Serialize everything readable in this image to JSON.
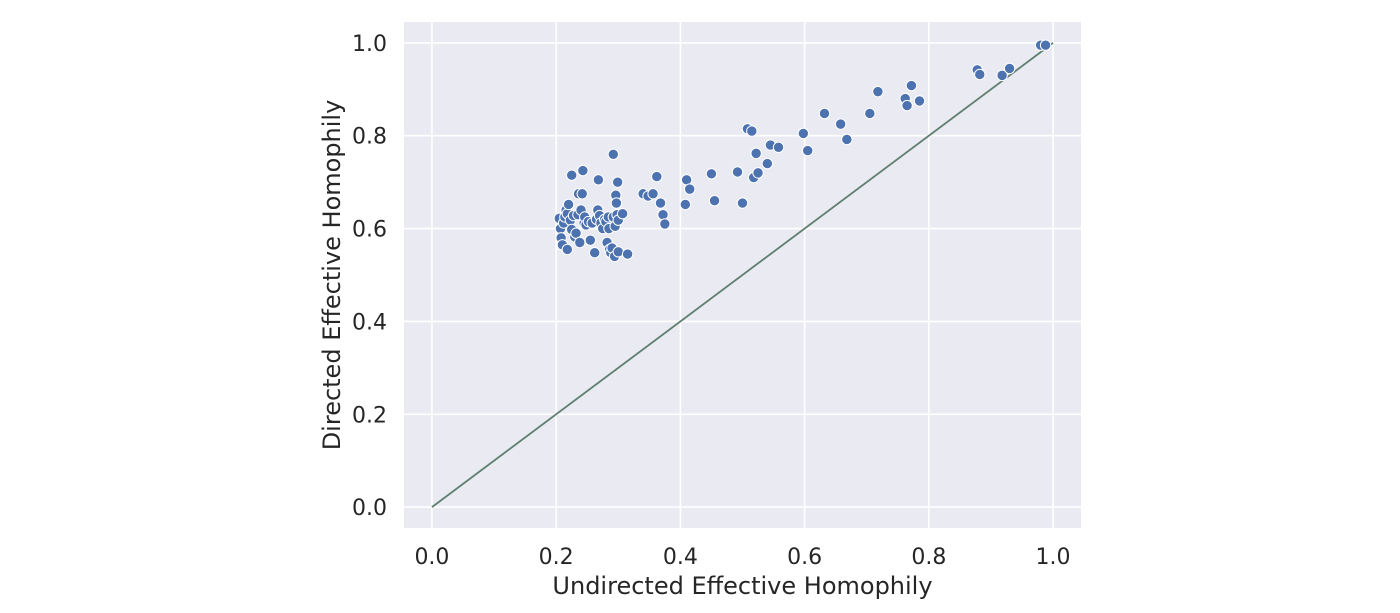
{
  "chart_data": {
    "type": "scatter",
    "title": "",
    "xlabel": "Undirected Effective Homophily",
    "ylabel": "Directed Effective Homophily",
    "xlim": [
      -0.045,
      1.045
    ],
    "ylim": [
      -0.045,
      1.045
    ],
    "xticks": [
      "0.0",
      "0.2",
      "0.4",
      "0.6",
      "0.8",
      "1.0"
    ],
    "yticks": [
      "0.0",
      "0.2",
      "0.4",
      "0.6",
      "0.8",
      "1.0"
    ],
    "grid": true,
    "colors": {
      "background": "#eaeaf2",
      "grid": "#ffffff",
      "point": "#4c72b0",
      "point_edge": "#ffffff",
      "reference_line": "#5f7f6f"
    },
    "reference_line": {
      "x": [
        0,
        1
      ],
      "y": [
        0,
        1
      ]
    },
    "points": [
      [
        0.205,
        0.622
      ],
      [
        0.207,
        0.6
      ],
      [
        0.208,
        0.58
      ],
      [
        0.21,
        0.565
      ],
      [
        0.212,
        0.612
      ],
      [
        0.214,
        0.625
      ],
      [
        0.216,
        0.64
      ],
      [
        0.218,
        0.632
      ],
      [
        0.22,
        0.652
      ],
      [
        0.218,
        0.555
      ],
      [
        0.223,
        0.618
      ],
      [
        0.225,
        0.598
      ],
      [
        0.225,
        0.715
      ],
      [
        0.228,
        0.628
      ],
      [
        0.23,
        0.582
      ],
      [
        0.232,
        0.59
      ],
      [
        0.235,
        0.63
      ],
      [
        0.236,
        0.675
      ],
      [
        0.238,
        0.57
      ],
      [
        0.24,
        0.64
      ],
      [
        0.242,
        0.675
      ],
      [
        0.243,
        0.725
      ],
      [
        0.245,
        0.612
      ],
      [
        0.246,
        0.625
      ],
      [
        0.248,
        0.608
      ],
      [
        0.252,
        0.615
      ],
      [
        0.255,
        0.575
      ],
      [
        0.258,
        0.612
      ],
      [
        0.262,
        0.548
      ],
      [
        0.265,
        0.62
      ],
      [
        0.267,
        0.64
      ],
      [
        0.268,
        0.705
      ],
      [
        0.27,
        0.628
      ],
      [
        0.272,
        0.612
      ],
      [
        0.275,
        0.6
      ],
      [
        0.278,
        0.62
      ],
      [
        0.28,
        0.615
      ],
      [
        0.282,
        0.57
      ],
      [
        0.284,
        0.625
      ],
      [
        0.285,
        0.6
      ],
      [
        0.286,
        0.555
      ],
      [
        0.288,
        0.548
      ],
      [
        0.29,
        0.558
      ],
      [
        0.292,
        0.625
      ],
      [
        0.292,
        0.76
      ],
      [
        0.294,
        0.54
      ],
      [
        0.295,
        0.605
      ],
      [
        0.296,
        0.672
      ],
      [
        0.297,
        0.655
      ],
      [
        0.298,
        0.63
      ],
      [
        0.299,
        0.7
      ],
      [
        0.3,
        0.618
      ],
      [
        0.3,
        0.55
      ],
      [
        0.307,
        0.632
      ],
      [
        0.315,
        0.545
      ],
      [
        0.34,
        0.675
      ],
      [
        0.348,
        0.67
      ],
      [
        0.356,
        0.675
      ],
      [
        0.362,
        0.712
      ],
      [
        0.368,
        0.655
      ],
      [
        0.372,
        0.63
      ],
      [
        0.375,
        0.61
      ],
      [
        0.408,
        0.652
      ],
      [
        0.41,
        0.705
      ],
      [
        0.415,
        0.685
      ],
      [
        0.45,
        0.718
      ],
      [
        0.455,
        0.66
      ],
      [
        0.492,
        0.722
      ],
      [
        0.5,
        0.655
      ],
      [
        0.508,
        0.815
      ],
      [
        0.515,
        0.81
      ],
      [
        0.518,
        0.71
      ],
      [
        0.522,
        0.762
      ],
      [
        0.525,
        0.72
      ],
      [
        0.54,
        0.74
      ],
      [
        0.545,
        0.78
      ],
      [
        0.558,
        0.775
      ],
      [
        0.598,
        0.805
      ],
      [
        0.605,
        0.768
      ],
      [
        0.632,
        0.848
      ],
      [
        0.658,
        0.825
      ],
      [
        0.668,
        0.792
      ],
      [
        0.705,
        0.848
      ],
      [
        0.718,
        0.895
      ],
      [
        0.762,
        0.88
      ],
      [
        0.765,
        0.865
      ],
      [
        0.772,
        0.908
      ],
      [
        0.785,
        0.875
      ],
      [
        0.878,
        0.942
      ],
      [
        0.882,
        0.932
      ],
      [
        0.918,
        0.93
      ],
      [
        0.93,
        0.945
      ],
      [
        0.98,
        0.995
      ],
      [
        0.988,
        0.995
      ]
    ]
  }
}
